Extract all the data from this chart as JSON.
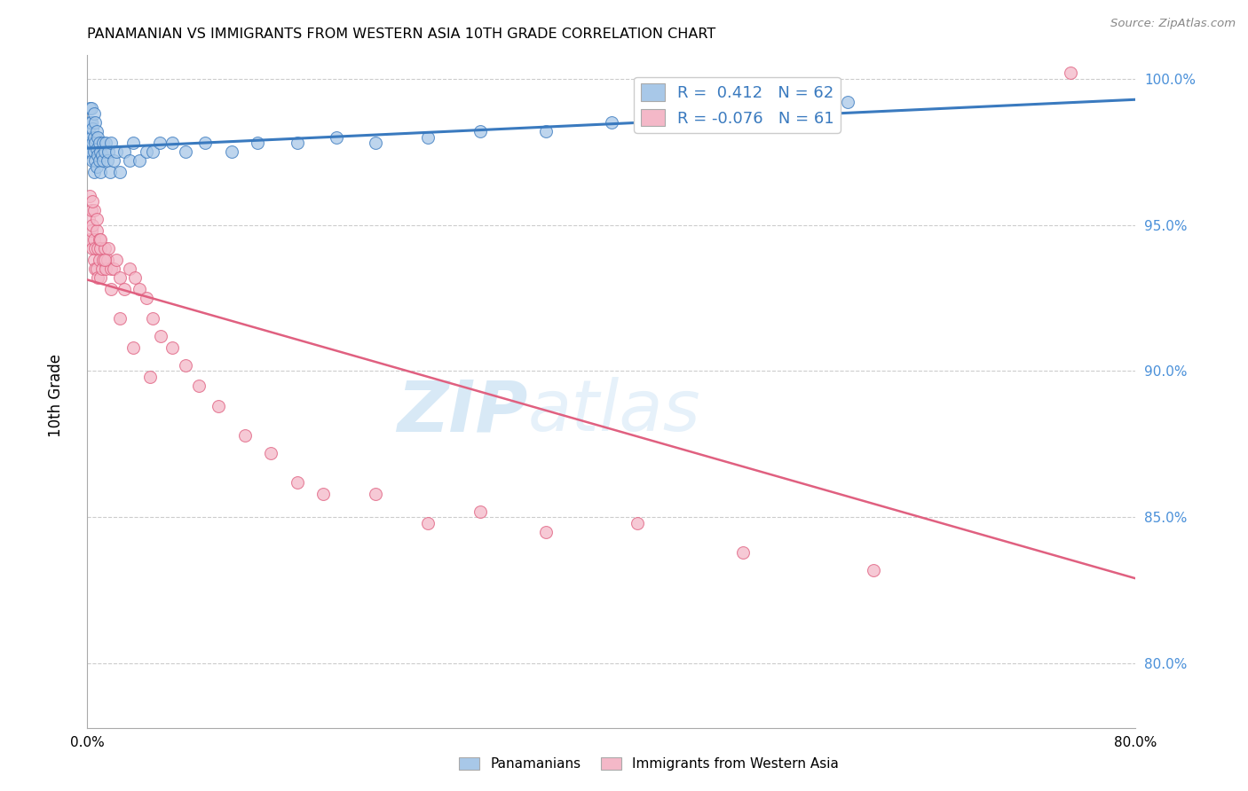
{
  "title": "PANAMANIAN VS IMMIGRANTS FROM WESTERN ASIA 10TH GRADE CORRELATION CHART",
  "source": "Source: ZipAtlas.com",
  "ylabel": "10th Grade",
  "y_ticks": [
    0.8,
    0.85,
    0.9,
    0.95,
    1.0
  ],
  "y_tick_labels": [
    "80.0%",
    "85.0%",
    "90.0%",
    "95.0%",
    "100.0%"
  ],
  "xlim": [
    0.0,
    0.8
  ],
  "ylim": [
    0.778,
    1.008
  ],
  "blue_R": 0.412,
  "blue_N": 62,
  "pink_R": -0.076,
  "pink_N": 61,
  "blue_color": "#a8c8e8",
  "pink_color": "#f4b8c8",
  "blue_line_color": "#3a7abf",
  "pink_line_color": "#e06080",
  "tick_label_color": "#4a90d9",
  "watermark_color": "#d0e8f8",
  "blue_scatter_x": [
    0.001,
    0.001,
    0.002,
    0.002,
    0.002,
    0.003,
    0.003,
    0.003,
    0.003,
    0.004,
    0.004,
    0.004,
    0.005,
    0.005,
    0.005,
    0.005,
    0.006,
    0.006,
    0.006,
    0.007,
    0.007,
    0.007,
    0.008,
    0.008,
    0.009,
    0.009,
    0.01,
    0.01,
    0.011,
    0.012,
    0.012,
    0.013,
    0.014,
    0.015,
    0.016,
    0.017,
    0.018,
    0.02,
    0.022,
    0.025,
    0.028,
    0.032,
    0.035,
    0.04,
    0.045,
    0.05,
    0.055,
    0.065,
    0.075,
    0.09,
    0.11,
    0.13,
    0.16,
    0.19,
    0.22,
    0.26,
    0.3,
    0.35,
    0.4,
    0.46,
    0.52,
    0.58
  ],
  "blue_scatter_y": [
    0.975,
    0.982,
    0.978,
    0.985,
    0.99,
    0.975,
    0.98,
    0.985,
    0.99,
    0.972,
    0.978,
    0.983,
    0.968,
    0.975,
    0.98,
    0.988,
    0.972,
    0.978,
    0.985,
    0.97,
    0.976,
    0.982,
    0.974,
    0.98,
    0.972,
    0.978,
    0.968,
    0.975,
    0.974,
    0.972,
    0.978,
    0.975,
    0.978,
    0.972,
    0.975,
    0.968,
    0.978,
    0.972,
    0.975,
    0.968,
    0.975,
    0.972,
    0.978,
    0.972,
    0.975,
    0.975,
    0.978,
    0.978,
    0.975,
    0.978,
    0.975,
    0.978,
    0.978,
    0.98,
    0.978,
    0.98,
    0.982,
    0.982,
    0.985,
    0.988,
    0.988,
    0.992
  ],
  "pink_scatter_x": [
    0.001,
    0.002,
    0.002,
    0.003,
    0.003,
    0.004,
    0.004,
    0.005,
    0.005,
    0.005,
    0.006,
    0.006,
    0.007,
    0.007,
    0.008,
    0.008,
    0.009,
    0.009,
    0.01,
    0.01,
    0.011,
    0.012,
    0.013,
    0.014,
    0.015,
    0.016,
    0.018,
    0.02,
    0.022,
    0.025,
    0.028,
    0.032,
    0.036,
    0.04,
    0.045,
    0.05,
    0.056,
    0.065,
    0.075,
    0.085,
    0.1,
    0.12,
    0.14,
    0.16,
    0.18,
    0.22,
    0.26,
    0.3,
    0.35,
    0.42,
    0.5,
    0.6,
    0.004,
    0.007,
    0.01,
    0.013,
    0.018,
    0.025,
    0.035,
    0.048,
    0.75
  ],
  "pink_scatter_y": [
    0.952,
    0.96,
    0.945,
    0.948,
    0.955,
    0.942,
    0.95,
    0.938,
    0.945,
    0.955,
    0.935,
    0.942,
    0.935,
    0.948,
    0.932,
    0.942,
    0.938,
    0.945,
    0.932,
    0.942,
    0.935,
    0.938,
    0.942,
    0.935,
    0.938,
    0.942,
    0.935,
    0.935,
    0.938,
    0.932,
    0.928,
    0.935,
    0.932,
    0.928,
    0.925,
    0.918,
    0.912,
    0.908,
    0.902,
    0.895,
    0.888,
    0.878,
    0.872,
    0.862,
    0.858,
    0.858,
    0.848,
    0.852,
    0.845,
    0.848,
    0.838,
    0.832,
    0.958,
    0.952,
    0.945,
    0.938,
    0.928,
    0.918,
    0.908,
    0.898,
    1.002
  ]
}
